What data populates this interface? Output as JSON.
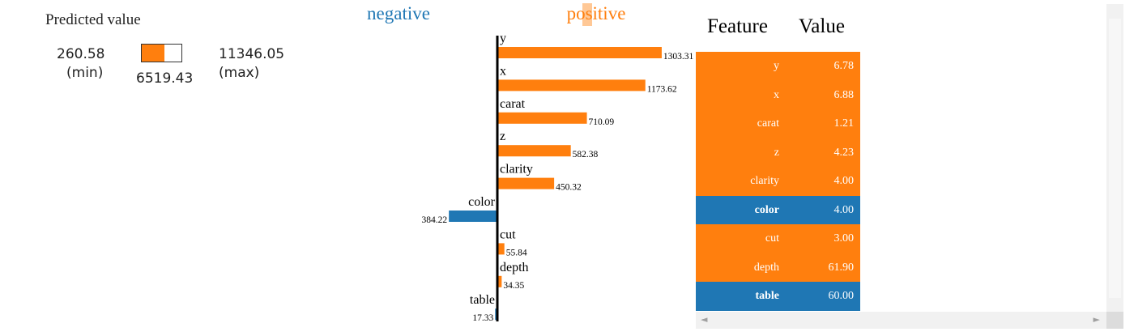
{
  "predicted": {
    "title": "Predicted value",
    "min": "260.58",
    "min_tag": "(min)",
    "max": "11346.05",
    "max_tag": "(max)",
    "value": "6519.43",
    "fill_fraction": 0.57,
    "color": "#ff7f0e"
  },
  "chart_data": {
    "type": "bar",
    "orientation": "horizontal-diverging",
    "neg_title": "negative",
    "pos_title": "positive",
    "colors": {
      "positive": "#ff7f0e",
      "negative": "#1f77b4"
    },
    "features": [
      {
        "name": "y",
        "value": 1303.31,
        "label": "1303.31",
        "sign": "positive"
      },
      {
        "name": "x",
        "value": 1173.62,
        "label": "1173.62",
        "sign": "positive"
      },
      {
        "name": "carat",
        "value": 710.09,
        "label": "710.09",
        "sign": "positive"
      },
      {
        "name": "z",
        "value": 582.38,
        "label": "582.38",
        "sign": "positive"
      },
      {
        "name": "clarity",
        "value": 450.32,
        "label": "450.32",
        "sign": "positive"
      },
      {
        "name": "color",
        "value": -384.22,
        "label": "384.22",
        "sign": "negative"
      },
      {
        "name": "cut",
        "value": 55.84,
        "label": "55.84",
        "sign": "positive"
      },
      {
        "name": "depth",
        "value": 34.35,
        "label": "34.35",
        "sign": "positive"
      },
      {
        "name": "table",
        "value": -17.33,
        "label": "17.33",
        "sign": "negative"
      }
    ]
  },
  "table": {
    "header_feature": "Feature",
    "header_value": "Value",
    "rows": [
      {
        "feature": "y",
        "value": "6.78",
        "sign": "positive"
      },
      {
        "feature": "x",
        "value": "6.88",
        "sign": "positive"
      },
      {
        "feature": "carat",
        "value": "1.21",
        "sign": "positive"
      },
      {
        "feature": "z",
        "value": "4.23",
        "sign": "positive"
      },
      {
        "feature": "clarity",
        "value": "4.00",
        "sign": "positive"
      },
      {
        "feature": "color",
        "value": "4.00",
        "sign": "negative"
      },
      {
        "feature": "cut",
        "value": "3.00",
        "sign": "positive"
      },
      {
        "feature": "depth",
        "value": "61.90",
        "sign": "positive"
      },
      {
        "feature": "table",
        "value": "60.00",
        "sign": "negative"
      }
    ]
  },
  "scrollbar": {
    "left_arrow": "◄",
    "right_arrow": "►"
  }
}
